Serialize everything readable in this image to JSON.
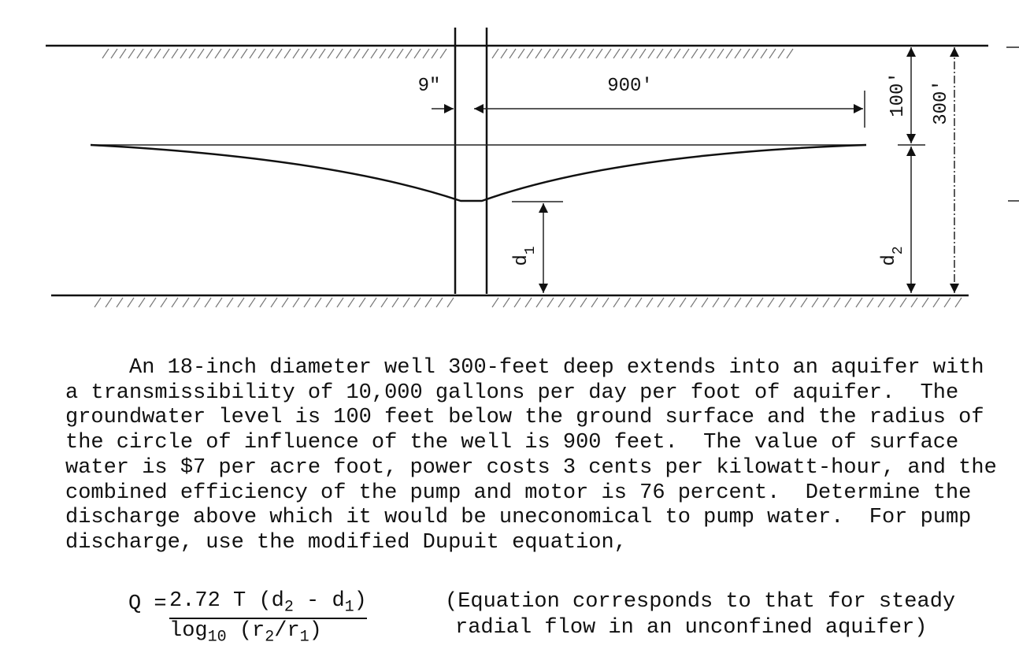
{
  "diagram": {
    "labels": {
      "casing": "9\"",
      "radius": "900'",
      "water_depth": "100'",
      "well_depth": "300'",
      "d2": [
        {
          "text": "d"
        },
        {
          "text": "2",
          "sub": true
        }
      ],
      "d1": [
        {
          "text": "d"
        },
        {
          "text": "1",
          "sub": true
        }
      ]
    }
  },
  "problem": {
    "lines": [
      "An 18-inch diameter well 300-feet deep extends into an aquifer with",
      "a transmissibility of 10,000 gallons per day per foot of aquifer.  The",
      "groundwater level is 100 feet below the ground surface and the radius of",
      "the circle of influence of the well is 900 feet.  The value of surface",
      "water is $7 per acre foot, power costs 3 cents per kilowatt-hour, and the",
      "combined efficiency of the pump and motor is 76 percent.  Determine the",
      "discharge above which it would be uneconomical to pump water.  For pump",
      "discharge, use the modified Dupuit equation,"
    ]
  },
  "equation": {
    "lhs": "Q =",
    "numerator": [
      {
        "text": "2.72 T (d"
      },
      {
        "text": "2",
        "sub": true
      },
      {
        "text": " - d"
      },
      {
        "text": "1",
        "sub": true
      },
      {
        "text": ")"
      }
    ],
    "denominator": [
      {
        "text": "log"
      },
      {
        "text": "10",
        "sub": true
      },
      {
        "text": " (r"
      },
      {
        "text": "2",
        "sub": true
      },
      {
        "text": "/r"
      },
      {
        "text": "1",
        "sub": true
      },
      {
        "text": ")"
      }
    ],
    "note": [
      "(Equation corresponds to that for steady",
      "radial flow in an unconfined aquifer)"
    ]
  }
}
